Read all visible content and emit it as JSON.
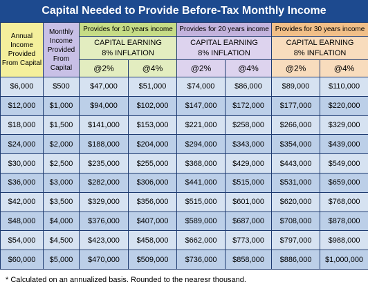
{
  "title": "Capital Needed to Provide Before-Tax Monthly Income",
  "headers": {
    "annual": "Annual Income Provided From Capital",
    "monthly": "Monthly Income Provided From Capital",
    "groups": [
      {
        "label": "Provides for 10 years income",
        "sublabel": "CAPITAL EARNING 8% INFLATION",
        "rates": [
          "@2%",
          "@4%"
        ]
      },
      {
        "label": "Provides for 20 years income",
        "sublabel": "CAPITAL EARNING 8% INFLATION",
        "rates": [
          "@2%",
          "@4%"
        ]
      },
      {
        "label": "Provides for 30 years income",
        "sublabel": "CAPITAL EARNING 8% INFLATION",
        "rates": [
          "@2%",
          "@4%"
        ]
      }
    ]
  },
  "rows": [
    [
      "$6,000",
      "$500",
      "$47,000",
      "$51,000",
      "$74,000",
      "$86,000",
      "$89,000",
      "$110,000"
    ],
    [
      "$12,000",
      "$1,000",
      "$94,000",
      "$102,000",
      "$147,000",
      "$172,000",
      "$177,000",
      "$220,000"
    ],
    [
      "$18,000",
      "$1,500",
      "$141,000",
      "$153,000",
      "$221,000",
      "$258,000",
      "$266,000",
      "$329,000"
    ],
    [
      "$24,000",
      "$2,000",
      "$188,000",
      "$204,000",
      "$294,000",
      "$343,000",
      "$354,000",
      "$439,000"
    ],
    [
      "$30,000",
      "$2,500",
      "$235,000",
      "$255,000",
      "$368,000",
      "$429,000",
      "$443,000",
      "$549,000"
    ],
    [
      "$36,000",
      "$3,000",
      "$282,000",
      "$306,000",
      "$441,000",
      "$515,000",
      "$531,000",
      "$659,000"
    ],
    [
      "$42,000",
      "$3,500",
      "$329,000",
      "$356,000",
      "$515,000",
      "$601,000",
      "$620,000",
      "$768,000"
    ],
    [
      "$48,000",
      "$4,000",
      "$376,000",
      "$407,000",
      "$589,000",
      "$687,000",
      "$708,000",
      "$878,000"
    ],
    [
      "$54,000",
      "$4,500",
      "$423,000",
      "$458,000",
      "$662,000",
      "$773,000",
      "$797,000",
      "$988,000"
    ],
    [
      "$60,000",
      "$5,000",
      "$470,000",
      "$509,000",
      "$736,000",
      "$858,000",
      "$886,000",
      "$1,000,000"
    ]
  ],
  "footnote": "* Calculated on an annualized basis. Rounded to the nearesr thousand."
}
